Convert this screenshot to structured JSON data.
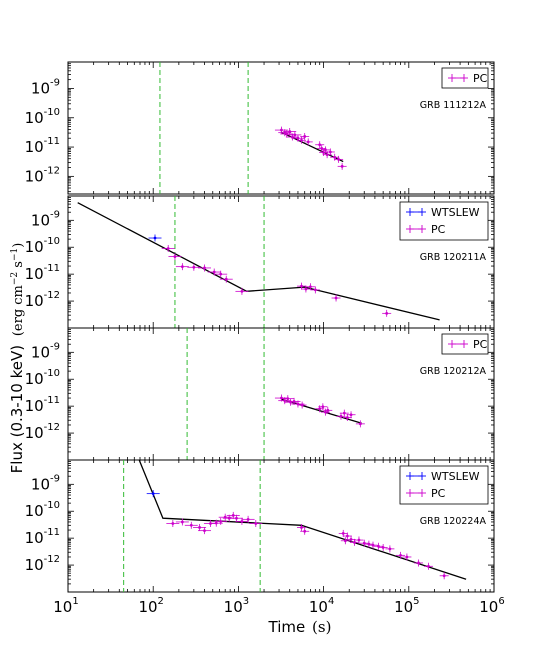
{
  "chart_data": {
    "type": "scatter",
    "x_axis": {
      "label": "Time",
      "unit": "(s)",
      "scale": "log",
      "range": [
        10,
        1000000
      ],
      "tick_labels": [
        {
          "base": "10",
          "exp": "1"
        },
        {
          "base": "10",
          "exp": "2"
        },
        {
          "base": "10",
          "exp": "3"
        },
        {
          "base": "10",
          "exp": "4"
        },
        {
          "base": "10",
          "exp": "5"
        },
        {
          "base": "10",
          "exp": "6"
        }
      ]
    },
    "y_axis": {
      "label": "Flux (0.3-10 keV)",
      "unit": "(erg cm$^{-2}$ s$^{-1}$)",
      "scale": "log",
      "range": [
        1e-13,
        1e-08
      ]
    },
    "panels": [
      {
        "grb": "GRB 111212A",
        "ylim": [
          2.5e-13,
          8e-09
        ],
        "y_tick_labels": [
          {
            "base": "10",
            "exp": "-9"
          },
          {
            "base": "10",
            "exp": "-10"
          },
          {
            "base": "10",
            "exp": "-11"
          },
          {
            "base": "10",
            "exp": "-12"
          }
        ],
        "legend": [
          "PC"
        ],
        "vlines": [
          120,
          1300
        ],
        "fit_line": [
          [
            3200,
            3.2e-11
          ],
          [
            17000,
            3.2e-12
          ]
        ],
        "series": [
          {
            "name": "PC",
            "color": "#cc00cc",
            "points": [
              [
                3200,
                3.8e-11
              ],
              [
                3500,
                3.1e-11
              ],
              [
                3700,
                2.8e-11
              ],
              [
                4000,
                3.4e-11
              ],
              [
                4300,
                2.2e-11
              ],
              [
                4600,
                2.6e-11
              ],
              [
                5000,
                2e-11
              ],
              [
                5500,
                1.7e-11
              ],
              [
                6000,
                2.3e-11
              ],
              [
                6600,
                1.5e-11
              ],
              [
                9000,
                1.2e-11
              ],
              [
                9500,
                9e-12
              ],
              [
                10000,
                6.5e-12
              ],
              [
                10500,
                8e-12
              ],
              [
                11000,
                5.5e-12
              ],
              [
                12000,
                6.8e-12
              ],
              [
                13500,
                4.5e-12
              ],
              [
                15000,
                3.8e-12
              ],
              [
                16500,
                2.2e-12
              ]
            ]
          }
        ]
      },
      {
        "grb": "GRB 120211A",
        "ylim": [
          1e-13,
          8e-09
        ],
        "y_tick_labels": [
          {
            "base": "10",
            "exp": "-9"
          },
          {
            "base": "10",
            "exp": "-10"
          },
          {
            "base": "10",
            "exp": "-11"
          },
          {
            "base": "10",
            "exp": "-12"
          }
        ],
        "legend": [
          "WTSLEW",
          "PC"
        ],
        "vlines": [
          180,
          2000
        ],
        "fit_line": [
          [
            13,
            4.5e-09
          ],
          [
            1250,
            2.3e-12
          ],
          [
            6000,
            3.3e-12
          ],
          [
            230000,
            2e-13
          ]
        ],
        "series": [
          {
            "name": "WTSLEW",
            "color": "#0000ff",
            "points": [
              [
                105,
                2.2e-10
              ]
            ]
          },
          {
            "name": "PC",
            "color": "#cc00cc",
            "points": [
              [
                150,
                9e-11
              ],
              [
                180,
                4.5e-11
              ],
              [
                220,
                1.9e-11
              ],
              [
                300,
                1.8e-11
              ],
              [
                400,
                1.7e-11
              ],
              [
                520,
                1.2e-11
              ],
              [
                620,
                1e-11
              ],
              [
                720,
                6.5e-12
              ],
              [
                1100,
                2.3e-12
              ],
              [
                5500,
                3.6e-12
              ],
              [
                6200,
                2.8e-12
              ],
              [
                7000,
                3.4e-12
              ],
              [
                8000,
                2.6e-12
              ],
              [
                14000,
                1.3e-12
              ],
              [
                55000,
                3.5e-13
              ]
            ]
          }
        ]
      },
      {
        "grb": "GRB 120212A",
        "ylim": [
          1e-13,
          8e-09
        ],
        "y_tick_labels": [
          {
            "base": "10",
            "exp": "-9"
          },
          {
            "base": "10",
            "exp": "-10"
          },
          {
            "base": "10",
            "exp": "-11"
          },
          {
            "base": "10",
            "exp": "-12"
          }
        ],
        "legend": [
          "PC"
        ],
        "vlines": [
          250,
          2000
        ],
        "fit_line": [
          [
            3200,
            1.8e-11
          ],
          [
            28000,
            2.3e-12
          ]
        ],
        "series": [
          {
            "name": "PC",
            "color": "#cc00cc",
            "points": [
              [
                3200,
                2e-11
              ],
              [
                3500,
                1.6e-11
              ],
              [
                3800,
                1.9e-11
              ],
              [
                4100,
                1.4e-11
              ],
              [
                4500,
                1.5e-11
              ],
              [
                5000,
                1.2e-11
              ],
              [
                5600,
                1.1e-11
              ],
              [
                9000,
                8e-12
              ],
              [
                9800,
                9.5e-12
              ],
              [
                10500,
                6e-12
              ],
              [
                11200,
                7e-12
              ],
              [
                16000,
                4.2e-12
              ],
              [
                17500,
                5.5e-12
              ],
              [
                19000,
                3.8e-12
              ],
              [
                21000,
                4.8e-12
              ],
              [
                27000,
                2.2e-12
              ]
            ]
          }
        ]
      },
      {
        "grb": "GRB 120224A",
        "ylim": [
          1e-13,
          8e-09
        ],
        "y_tick_labels": [
          {
            "base": "10",
            "exp": "-9"
          },
          {
            "base": "10",
            "exp": "-10"
          },
          {
            "base": "10",
            "exp": "-11"
          },
          {
            "base": "10",
            "exp": "-12"
          }
        ],
        "legend": [
          "WTSLEW",
          "PC"
        ],
        "vlines": [
          45,
          1800
        ],
        "fit_line": [
          [
            65,
            1.2e-08
          ],
          [
            130,
            5.5e-11
          ],
          [
            5500,
            3e-11
          ],
          [
            470000,
            3e-13
          ]
        ],
        "series": [
          {
            "name": "WTSLEW",
            "color": "#0000ff",
            "points": [
              [
                100,
                4.5e-10
              ]
            ]
          },
          {
            "name": "PC",
            "color": "#cc00cc",
            "points": [
              [
                170,
                3.5e-11
              ],
              [
                220,
                4e-11
              ],
              [
                280,
                3e-11
              ],
              [
                350,
                2.5e-11
              ],
              [
                400,
                1.9e-11
              ],
              [
                470,
                3.5e-11
              ],
              [
                550,
                3.6e-11
              ],
              [
                620,
                4.2e-11
              ],
              [
                700,
                6e-11
              ],
              [
                780,
                5.5e-11
              ],
              [
                870,
                7e-11
              ],
              [
                950,
                5.5e-11
              ],
              [
                1100,
                4.2e-11
              ],
              [
                1300,
                5e-11
              ],
              [
                1600,
                3.5e-11
              ],
              [
                5500,
                2.5e-11
              ],
              [
                6000,
                1.8e-11
              ],
              [
                17000,
                1.5e-11
              ],
              [
                18000,
                8e-12
              ],
              [
                19000,
                1.2e-11
              ],
              [
                21000,
                9e-12
              ],
              [
                23000,
                7e-12
              ],
              [
                26000,
                8.5e-12
              ],
              [
                30000,
                6.5e-12
              ],
              [
                34000,
                6e-12
              ],
              [
                38000,
                5.5e-12
              ],
              [
                44000,
                5e-12
              ],
              [
                50000,
                4.5e-12
              ],
              [
                60000,
                4e-12
              ],
              [
                80000,
                2.3e-12
              ],
              [
                95000,
                2e-12
              ],
              [
                130000,
                1.2e-12
              ],
              [
                170000,
                9e-13
              ],
              [
                260000,
                4e-13
              ]
            ]
          }
        ]
      }
    ]
  }
}
